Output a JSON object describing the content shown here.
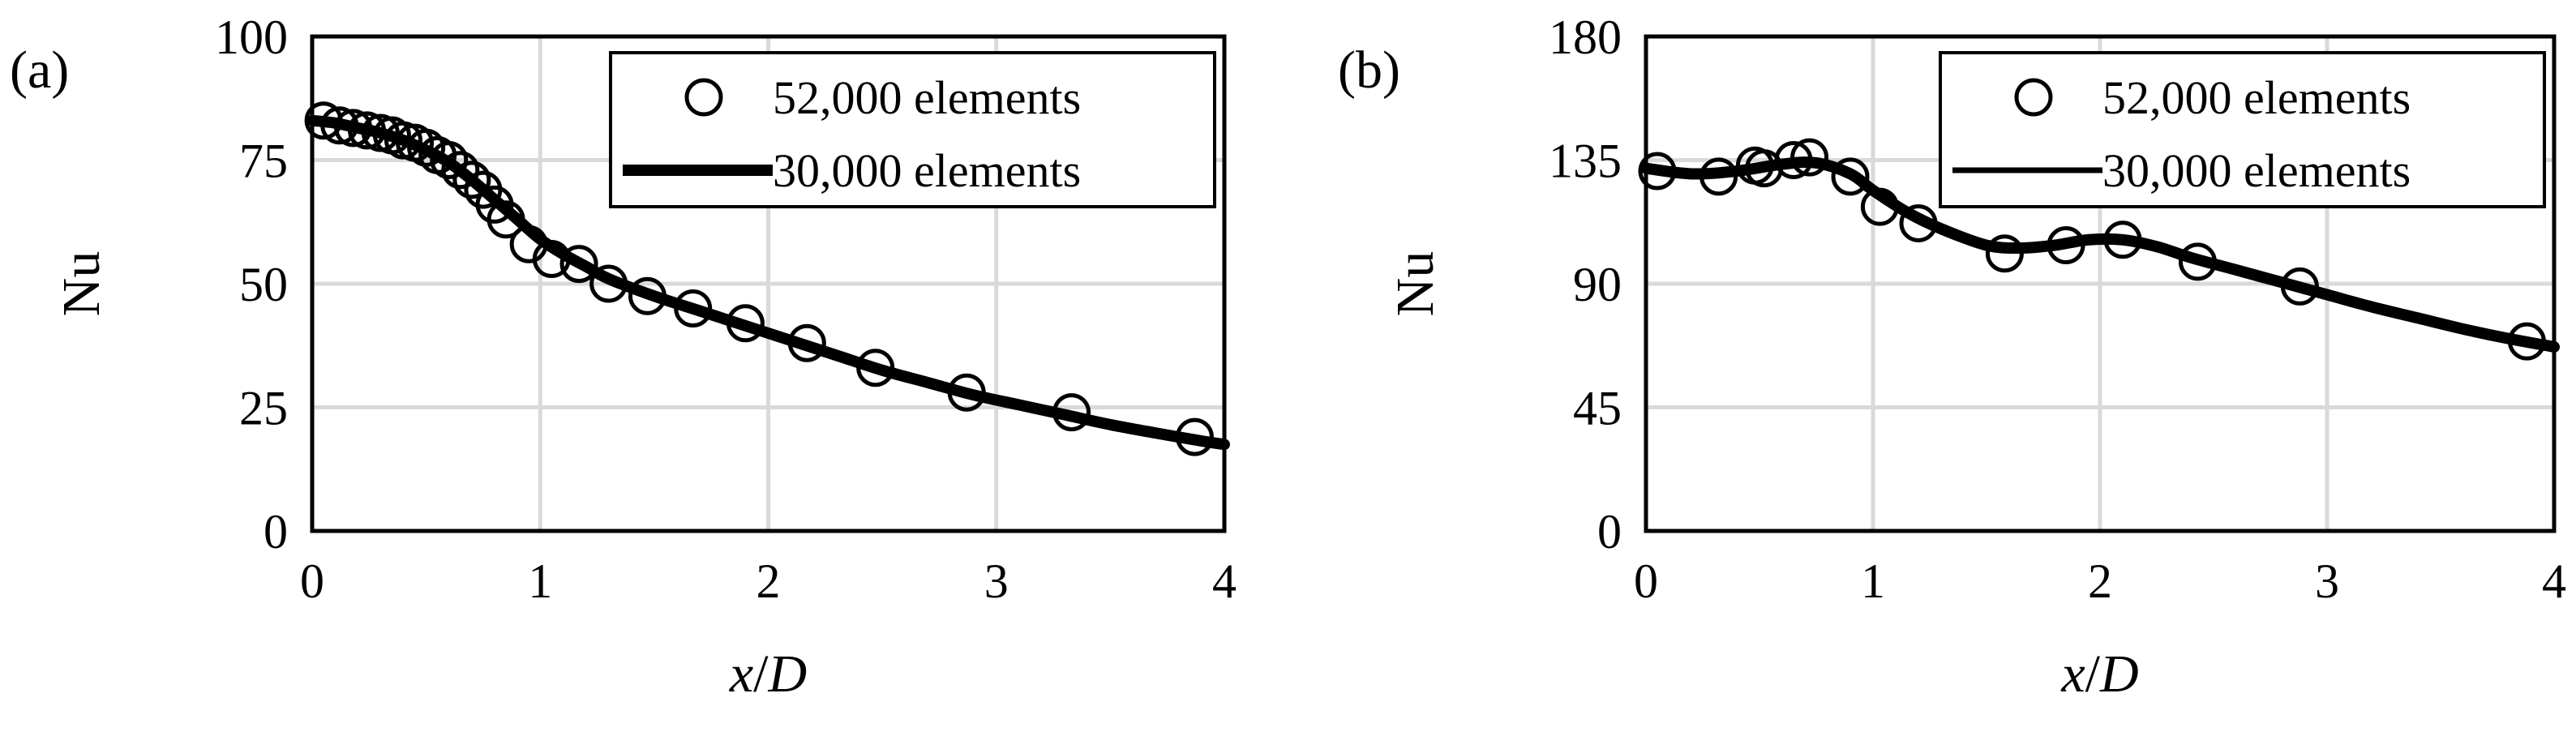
{
  "chart_data": [
    {
      "type": "scatter",
      "panel_label": "(a)",
      "xlabel_italic_1": "x",
      "xlabel_sep": "/",
      "xlabel_italic_2": "D",
      "ylabel": "Nu",
      "xlim": [
        0,
        4
      ],
      "ylim": [
        0,
        100
      ],
      "x_ticks": [
        0,
        1,
        2,
        3,
        4
      ],
      "y_ticks": [
        0,
        25,
        50,
        75,
        100
      ],
      "grid": true,
      "legend_position": "top-right",
      "series": [
        {
          "name": "52,000 elements",
          "style": "open-circle-markers",
          "x": [
            0.05,
            0.12,
            0.18,
            0.24,
            0.3,
            0.35,
            0.4,
            0.45,
            0.5,
            0.55,
            0.6,
            0.65,
            0.7,
            0.75,
            0.8,
            0.85,
            0.95,
            1.05,
            1.17,
            1.3,
            1.47,
            1.67,
            1.9,
            2.17,
            2.47,
            2.87,
            3.33,
            3.87
          ],
          "y": [
            83,
            82,
            81.5,
            81,
            80.5,
            80,
            79,
            78.5,
            77.5,
            76,
            75,
            73,
            71,
            69,
            66,
            63,
            58,
            55,
            54,
            50,
            47.5,
            45,
            42,
            38,
            33,
            28,
            24,
            19
          ]
        },
        {
          "name": "30,000 elements",
          "style": "thick-line",
          "x": [
            0,
            0.1,
            0.2,
            0.3,
            0.4,
            0.5,
            0.6,
            0.7,
            0.8,
            0.9,
            1.0,
            1.1,
            1.2,
            1.3,
            1.5,
            1.7,
            1.9,
            2.1,
            2.3,
            2.5,
            2.7,
            2.9,
            3.1,
            3.3,
            3.5,
            3.7,
            3.9,
            4.0
          ],
          "y": [
            83,
            82.5,
            81.5,
            80.5,
            79,
            77,
            74.5,
            71,
            67,
            63,
            59,
            56,
            53.5,
            51,
            47.5,
            44.5,
            41.5,
            38.5,
            35.5,
            32.5,
            30,
            27.5,
            25.5,
            23.5,
            21.5,
            19.8,
            18.2,
            17.5
          ]
        }
      ]
    },
    {
      "type": "scatter",
      "panel_label": "(b)",
      "xlabel_italic_1": "x",
      "xlabel_sep": "/",
      "xlabel_italic_2": "D",
      "ylabel": "Nu",
      "xlim": [
        0,
        4
      ],
      "ylim": [
        0,
        180
      ],
      "x_ticks": [
        0,
        1,
        2,
        3,
        4
      ],
      "y_ticks": [
        0,
        45,
        90,
        135,
        180
      ],
      "grid": true,
      "legend_position": "top-right",
      "series": [
        {
          "name": "52,000 elements",
          "style": "open-circle-markers",
          "x": [
            0.05,
            0.32,
            0.48,
            0.52,
            0.65,
            0.72,
            0.9,
            1.03,
            1.2,
            1.58,
            1.85,
            2.1,
            2.43,
            2.88,
            3.88
          ],
          "y": [
            131,
            129,
            133,
            132,
            135,
            136,
            129,
            118,
            112,
            101,
            104,
            106,
            98,
            89,
            69
          ]
        },
        {
          "name": "30,000 elements",
          "style": "thin-line",
          "x": [
            0,
            0.2,
            0.4,
            0.6,
            0.75,
            0.9,
            1.0,
            1.15,
            1.3,
            1.5,
            1.65,
            1.8,
            1.95,
            2.1,
            2.25,
            2.4,
            2.6,
            2.8,
            3.0,
            3.2,
            3.4,
            3.6,
            3.8,
            4.0
          ],
          "y": [
            132,
            130,
            131,
            133.5,
            134,
            130,
            124,
            116,
            110,
            104,
            103,
            104,
            106,
            106,
            103.5,
            99.5,
            95,
            90.5,
            86,
            81.5,
            77.5,
            73.5,
            70,
            67
          ]
        }
      ]
    }
  ]
}
